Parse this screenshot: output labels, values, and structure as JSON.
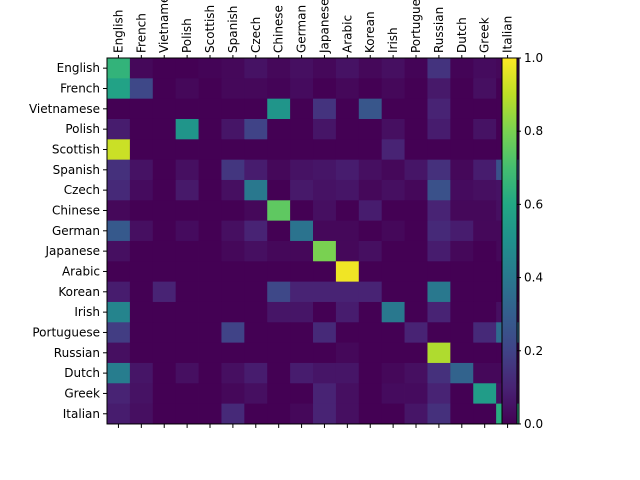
{
  "chart_data": {
    "type": "heatmap",
    "title": "",
    "xlabel": "",
    "ylabel": "",
    "x_labels": [
      "English",
      "French",
      "Vietnamese",
      "Polish",
      "Scottish",
      "Spanish",
      "Czech",
      "Chinese",
      "German",
      "Japanese",
      "Arabic",
      "Korean",
      "Irish",
      "Portuguese",
      "Russian",
      "Dutch",
      "Greek",
      "Italian"
    ],
    "y_labels": [
      "English",
      "French",
      "Vietnamese",
      "Polish",
      "Scottish",
      "Spanish",
      "Czech",
      "Chinese",
      "German",
      "Japanese",
      "Arabic",
      "Korean",
      "Irish",
      "Portuguese",
      "Russian",
      "Dutch",
      "Greek",
      "Italian"
    ],
    "colormap": "viridis",
    "color_range": [
      0,
      1
    ],
    "colorbar_ticks": [
      "0.0",
      "0.2",
      "0.4",
      "0.6",
      "0.8",
      "1.0"
    ],
    "colorbar_ticks_values": [
      0,
      0.2,
      0.4,
      0.6,
      0.8,
      1.0
    ],
    "values": [
      [
        0.65,
        0.02,
        0.0,
        0.0,
        0.01,
        0.02,
        0.05,
        0.02,
        0.04,
        0.02,
        0.05,
        0.02,
        0.04,
        0.01,
        0.15,
        0.01,
        0.03,
        0.02
      ],
      [
        0.58,
        0.22,
        0.0,
        0.02,
        0.0,
        0.02,
        0.02,
        0.01,
        0.03,
        0.0,
        0.02,
        0.0,
        0.02,
        0.0,
        0.07,
        0.0,
        0.04,
        0.0
      ],
      [
        0.0,
        0.0,
        0.0,
        0.0,
        0.0,
        0.0,
        0.0,
        0.52,
        0.0,
        0.15,
        0.0,
        0.27,
        0.0,
        0.0,
        0.1,
        0.0,
        0.0,
        0.0
      ],
      [
        0.08,
        0.0,
        0.0,
        0.52,
        0.0,
        0.06,
        0.2,
        0.0,
        0.0,
        0.06,
        0.0,
        0.0,
        0.04,
        0.0,
        0.08,
        0.0,
        0.05,
        0.0
      ],
      [
        0.92,
        0.0,
        0.0,
        0.0,
        0.0,
        0.0,
        0.0,
        0.0,
        0.0,
        0.0,
        0.0,
        0.0,
        0.1,
        0.0,
        0.0,
        0.0,
        0.0,
        0.0
      ],
      [
        0.14,
        0.05,
        0.0,
        0.04,
        0.0,
        0.16,
        0.08,
        0.02,
        0.05,
        0.06,
        0.08,
        0.04,
        0.02,
        0.06,
        0.14,
        0.02,
        0.08,
        0.25
      ],
      [
        0.12,
        0.03,
        0.0,
        0.07,
        0.0,
        0.04,
        0.4,
        0.0,
        0.07,
        0.05,
        0.06,
        0.02,
        0.04,
        0.02,
        0.25,
        0.03,
        0.04,
        0.05
      ],
      [
        0.02,
        0.0,
        0.0,
        0.0,
        0.0,
        0.0,
        0.02,
        0.75,
        0.0,
        0.04,
        0.0,
        0.08,
        0.0,
        0.0,
        0.1,
        0.02,
        0.02,
        0.04
      ],
      [
        0.28,
        0.04,
        0.0,
        0.03,
        0.0,
        0.04,
        0.1,
        0.0,
        0.38,
        0.02,
        0.02,
        0.0,
        0.02,
        0.0,
        0.12,
        0.08,
        0.02,
        0.02
      ],
      [
        0.04,
        0.0,
        0.0,
        0.0,
        0.0,
        0.02,
        0.04,
        0.02,
        0.02,
        0.8,
        0.02,
        0.04,
        0.0,
        0.0,
        0.08,
        0.02,
        0.0,
        0.02
      ],
      [
        0.0,
        0.0,
        0.0,
        0.0,
        0.0,
        0.0,
        0.0,
        0.0,
        0.0,
        0.0,
        0.98,
        0.0,
        0.0,
        0.0,
        0.0,
        0.0,
        0.0,
        0.0
      ],
      [
        0.08,
        0.0,
        0.1,
        0.0,
        0.0,
        0.0,
        0.0,
        0.22,
        0.1,
        0.1,
        0.1,
        0.1,
        0.0,
        0.0,
        0.4,
        0.0,
        0.0,
        0.0
      ],
      [
        0.45,
        0.0,
        0.0,
        0.0,
        0.0,
        0.0,
        0.0,
        0.06,
        0.06,
        0.0,
        0.08,
        0.0,
        0.4,
        0.0,
        0.1,
        0.0,
        0.0,
        0.04
      ],
      [
        0.18,
        0.0,
        0.0,
        0.0,
        0.0,
        0.2,
        0.0,
        0.0,
        0.0,
        0.12,
        0.0,
        0.0,
        0.0,
        0.1,
        0.0,
        0.0,
        0.12,
        0.35
      ],
      [
        0.04,
        0.0,
        0.0,
        0.0,
        0.0,
        0.0,
        0.0,
        0.0,
        0.0,
        0.0,
        0.02,
        0.0,
        0.0,
        0.0,
        0.88,
        0.0,
        0.0,
        0.0
      ],
      [
        0.42,
        0.06,
        0.0,
        0.04,
        0.0,
        0.04,
        0.08,
        0.0,
        0.08,
        0.06,
        0.06,
        0.0,
        0.02,
        0.04,
        0.14,
        0.32,
        0.02,
        0.02
      ],
      [
        0.1,
        0.05,
        0.0,
        0.0,
        0.0,
        0.02,
        0.04,
        0.0,
        0.0,
        0.1,
        0.04,
        0.0,
        0.03,
        0.03,
        0.1,
        0.0,
        0.55,
        0.04
      ],
      [
        0.08,
        0.04,
        0.0,
        0.0,
        0.0,
        0.12,
        0.0,
        0.0,
        0.02,
        0.1,
        0.04,
        0.0,
        0.0,
        0.06,
        0.14,
        0.0,
        0.0,
        0.62
      ]
    ]
  }
}
